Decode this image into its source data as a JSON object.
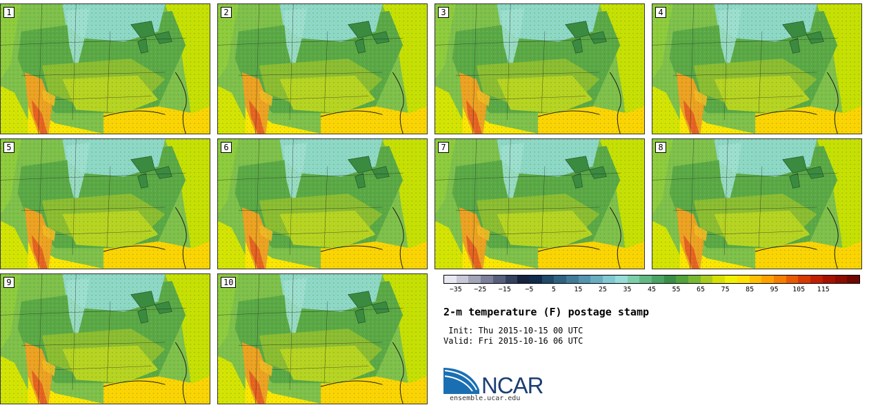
{
  "figure": {
    "title": "2-m temperature (F) postage stamp",
    "init_label": " Init: Thu 2015-10-15 00 UTC",
    "valid_label": "Valid: Fri 2015-10-16 06 UTC",
    "site": "ensemble.ucar.edu",
    "logo_text": "NCAR"
  },
  "panels": [
    "1",
    "2",
    "3",
    "4",
    "5",
    "6",
    "7",
    "8",
    "9",
    "10"
  ],
  "colorbar": {
    "colors": [
      "#e8e8f2",
      "#c8c8d8",
      "#a2a4b8",
      "#7c809a",
      "#56607c",
      "#33405e",
      "#16233f",
      "#0f2b4d",
      "#1f4a6a",
      "#2f6382",
      "#417b98",
      "#5494ae",
      "#68adc0",
      "#80c8d2",
      "#96dcd8",
      "#7ccfa8",
      "#62b982",
      "#4aa463",
      "#3a8f46",
      "#52a33a",
      "#78b832",
      "#a8cc1e",
      "#d6e000",
      "#f0f000",
      "#ffe000",
      "#ffc000",
      "#ffa200",
      "#f57f00",
      "#e85a00",
      "#d63a00",
      "#c01f00",
      "#a61200",
      "#8c0c00",
      "#6e0800"
    ],
    "tick_labels": [
      "−35",
      "−25",
      "−15",
      "−5",
      "5",
      "15",
      "25",
      "35",
      "45",
      "55",
      "65",
      "75",
      "85",
      "95",
      "105",
      "115"
    ]
  }
}
